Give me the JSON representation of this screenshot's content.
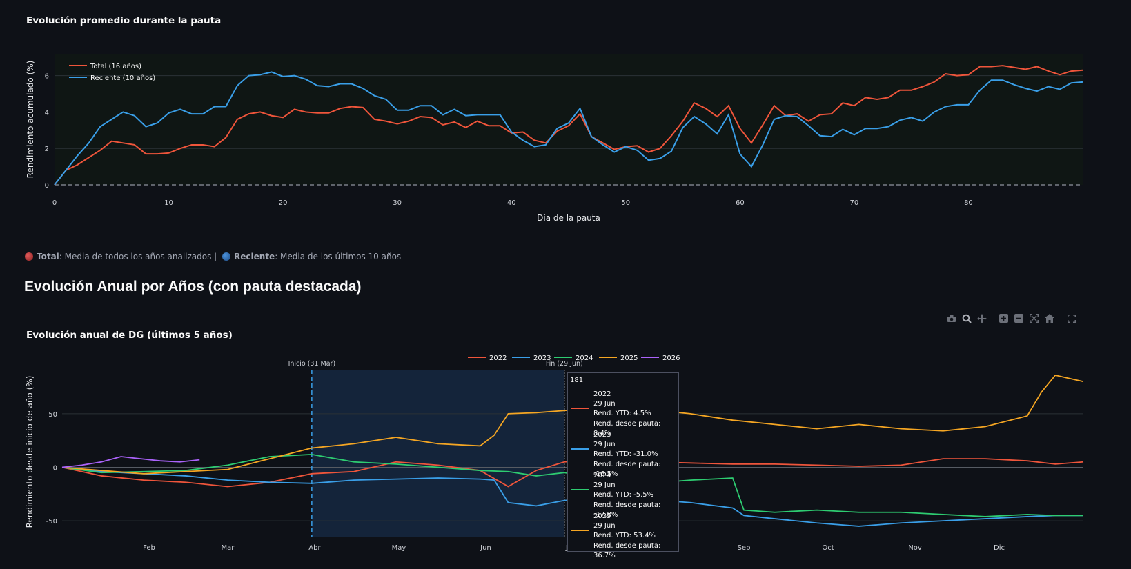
{
  "chart1": {
    "title": "Evolución promedio durante la pauta",
    "xlabel": "Día de la pauta",
    "ylabel": "Rendimiento acumulado (%)"
  },
  "note": {
    "total_label": "Total",
    "total_text": ": Media de todos los años analizados | ",
    "recent_label": "Reciente",
    "recent_text": ": Media de los últimos 10 años",
    "total_color": "#c0392b",
    "recent_color": "#2e6fb5"
  },
  "section_heading": "Evolución Anual por Años (con pauta destacada)",
  "chart2": {
    "title": "Evolución anual de DG (últimos 5 años)",
    "ylabel": "Rendimiento desde inicio de año (%)",
    "start_label": "Inicio (31 Mar)",
    "end_label": "Fin (29 Jun)"
  },
  "toolbar": [
    "camera-icon",
    "zoom-icon",
    "pan-icon",
    "zoom-in-icon",
    "zoom-out-icon",
    "autoscale-icon",
    "home-icon",
    "fullscreen-icon"
  ],
  "tooltip": {
    "header": "181",
    "items": [
      {
        "year": "2022",
        "date": "29 Jun",
        "ytd": "Rend. YTD: 4.5%",
        "since": "Rend. desde pauta: 8.4%",
        "color": "#ef553b"
      },
      {
        "year": "2023",
        "date": "29 Jun",
        "ytd": "Rend. YTD: -31.0%",
        "since": "Rend. desde pauta: -16.5%",
        "color": "#3a9fe8"
      },
      {
        "year": "2024",
        "date": "29 Jun",
        "ytd": "Rend. YTD: -5.5%",
        "since": "Rend. desde pauta: -17.8%",
        "color": "#2ecc71"
      },
      {
        "year": "2025",
        "date": "29 Jun",
        "ytd": "Rend. YTD: 53.4%",
        "since": "Rend. desde pauta: 36.7%",
        "color": "#f5a623"
      }
    ]
  },
  "chart_data": [
    {
      "type": "line",
      "title": "Evolución promedio durante la pauta",
      "xlabel": "Día de la pauta",
      "ylabel": "Rendimiento acumulado (%)",
      "xlim": [
        0,
        90
      ],
      "ylim": [
        0,
        7.2
      ],
      "xticks": [
        0,
        10,
        20,
        30,
        40,
        50,
        60,
        70,
        80
      ],
      "yticks": [
        0,
        2,
        4,
        6
      ],
      "grid": true,
      "legend": "top-left",
      "series": [
        {
          "name": "Total (16 años)",
          "color": "#ef553b",
          "values": [
            0,
            0.8,
            1.1,
            1.5,
            1.9,
            2.4,
            2.3,
            2.2,
            1.7,
            1.7,
            1.75,
            2.0,
            2.2,
            2.2,
            2.1,
            2.6,
            3.6,
            3.9,
            4.0,
            3.8,
            3.7,
            4.15,
            4.0,
            3.95,
            3.95,
            4.2,
            4.3,
            4.25,
            3.6,
            3.5,
            3.35,
            3.5,
            3.75,
            3.7,
            3.3,
            3.45,
            3.15,
            3.5,
            3.25,
            3.25,
            2.85,
            2.9,
            2.45,
            2.3,
            2.95,
            3.25,
            3.9,
            2.65,
            2.3,
            1.95,
            2.1,
            2.15,
            1.8,
            2.0,
            2.7,
            3.5,
            4.5,
            4.2,
            3.75,
            4.35,
            3.1,
            2.3,
            3.3,
            4.35,
            3.8,
            3.9,
            3.5,
            3.85,
            3.9,
            4.5,
            4.35,
            4.8,
            4.7,
            4.8,
            5.2,
            5.2,
            5.4,
            5.65,
            6.1,
            6.0,
            6.05,
            6.5,
            6.5,
            6.55,
            6.45,
            6.35,
            6.5,
            6.25,
            6.05,
            6.25,
            6.3
          ]
        },
        {
          "name": "Reciente (10 años)",
          "color": "#3a9fe8",
          "values": [
            0,
            0.8,
            1.6,
            2.3,
            3.2,
            3.6,
            4.0,
            3.8,
            3.2,
            3.4,
            3.95,
            4.15,
            3.9,
            3.9,
            4.3,
            4.3,
            5.45,
            6.0,
            6.05,
            6.2,
            5.95,
            6.0,
            5.8,
            5.45,
            5.4,
            5.55,
            5.55,
            5.3,
            4.9,
            4.7,
            4.1,
            4.1,
            4.35,
            4.35,
            3.85,
            4.15,
            3.8,
            3.85,
            3.85,
            3.85,
            2.9,
            2.45,
            2.1,
            2.2,
            3.1,
            3.4,
            4.2,
            2.65,
            2.2,
            1.8,
            2.1,
            1.9,
            1.35,
            1.45,
            1.85,
            3.15,
            3.75,
            3.35,
            2.8,
            3.85,
            1.7,
            1.0,
            2.2,
            3.6,
            3.8,
            3.75,
            3.25,
            2.7,
            2.65,
            3.05,
            2.75,
            3.1,
            3.1,
            3.2,
            3.55,
            3.7,
            3.5,
            4.0,
            4.3,
            4.4,
            4.4,
            5.2,
            5.75,
            5.75,
            5.5,
            5.3,
            5.15,
            5.4,
            5.25,
            5.6,
            5.65
          ]
        }
      ]
    },
    {
      "type": "line",
      "title": "Evolución anual de DG (últimos 5 años)",
      "ylabel": "Rendimiento desde inicio de año (%)",
      "x_unit": "day of year",
      "xlim": [
        1,
        365
      ],
      "ylim": [
        -66,
        95
      ],
      "xticks": [
        "Feb",
        "Mar",
        "Abr",
        "May",
        "Jun",
        "Jul",
        "Ago",
        "Sep",
        "Oct",
        "Nov",
        "Dic"
      ],
      "yticks": [
        -50,
        0,
        50
      ],
      "grid": true,
      "legend": "top-center",
      "highlight": {
        "start": "31 Mar",
        "end": "29 Jun",
        "start_day": 90,
        "end_day": 180
      },
      "x_days": [
        1,
        15,
        30,
        45,
        60,
        75,
        90,
        105,
        120,
        135,
        150,
        160,
        170,
        180,
        195,
        210,
        225,
        240,
        244,
        255,
        270,
        285,
        300,
        315,
        330,
        345,
        350,
        355,
        365
      ],
      "series": [
        {
          "name": "2022",
          "color": "#ef553b",
          "x": [
            1,
            15,
            30,
            45,
            60,
            75,
            90,
            105,
            120,
            135,
            150,
            160,
            170,
            180,
            195,
            210,
            225,
            240,
            255,
            270,
            285,
            300,
            315,
            330,
            345,
            355,
            365
          ],
          "values": [
            0,
            -8,
            -12,
            -14,
            -18,
            -14,
            -6,
            -4,
            5,
            2,
            -3,
            -18,
            -3,
            5,
            7,
            5,
            4,
            3,
            3,
            2,
            1,
            2,
            8,
            8,
            6,
            3,
            5
          ]
        },
        {
          "name": "2023",
          "color": "#3a9fe8",
          "x": [
            1,
            15,
            30,
            45,
            60,
            75,
            90,
            105,
            120,
            135,
            150,
            155,
            160,
            170,
            180,
            195,
            210,
            225,
            240,
            244,
            255,
            270,
            285,
            300,
            315,
            330,
            345,
            355,
            365
          ],
          "values": [
            0,
            -4,
            -6,
            -8,
            -12,
            -14,
            -15,
            -12,
            -11,
            -10,
            -11,
            -12,
            -33,
            -36,
            -31,
            -28,
            -30,
            -33,
            -38,
            -45,
            -48,
            -52,
            -55,
            -52,
            -50,
            -48,
            -46,
            -45,
            -45
          ]
        },
        {
          "name": "2024",
          "color": "#2ecc71",
          "x": [
            1,
            15,
            30,
            45,
            60,
            75,
            90,
            105,
            120,
            135,
            150,
            160,
            170,
            180,
            195,
            210,
            225,
            240,
            244,
            255,
            270,
            285,
            300,
            315,
            330,
            345,
            355,
            365
          ],
          "values": [
            0,
            -5,
            -4,
            -3,
            2,
            10,
            12,
            5,
            3,
            0,
            -3,
            -4,
            -8,
            -5,
            -12,
            -15,
            -12,
            -10,
            -40,
            -42,
            -40,
            -42,
            -42,
            -44,
            -46,
            -44,
            -45,
            -45
          ]
        },
        {
          "name": "2025",
          "color": "#f5a623",
          "x": [
            1,
            15,
            30,
            45,
            60,
            75,
            90,
            105,
            120,
            135,
            150,
            155,
            160,
            170,
            180,
            195,
            210,
            225,
            240,
            255,
            270,
            285,
            300,
            315,
            330,
            345,
            350,
            355,
            365
          ],
          "values": [
            0,
            -3,
            -6,
            -4,
            -2,
            8,
            18,
            22,
            28,
            22,
            20,
            30,
            50,
            51,
            53,
            55,
            54,
            50,
            44,
            40,
            36,
            40,
            36,
            34,
            38,
            48,
            70,
            86,
            80
          ]
        },
        {
          "name": "2026",
          "color": "#ab63fa",
          "x": [
            1,
            8,
            15,
            22,
            29,
            36,
            43,
            50
          ],
          "values": [
            0,
            2,
            5,
            10,
            8,
            6,
            5,
            7
          ]
        }
      ]
    }
  ]
}
